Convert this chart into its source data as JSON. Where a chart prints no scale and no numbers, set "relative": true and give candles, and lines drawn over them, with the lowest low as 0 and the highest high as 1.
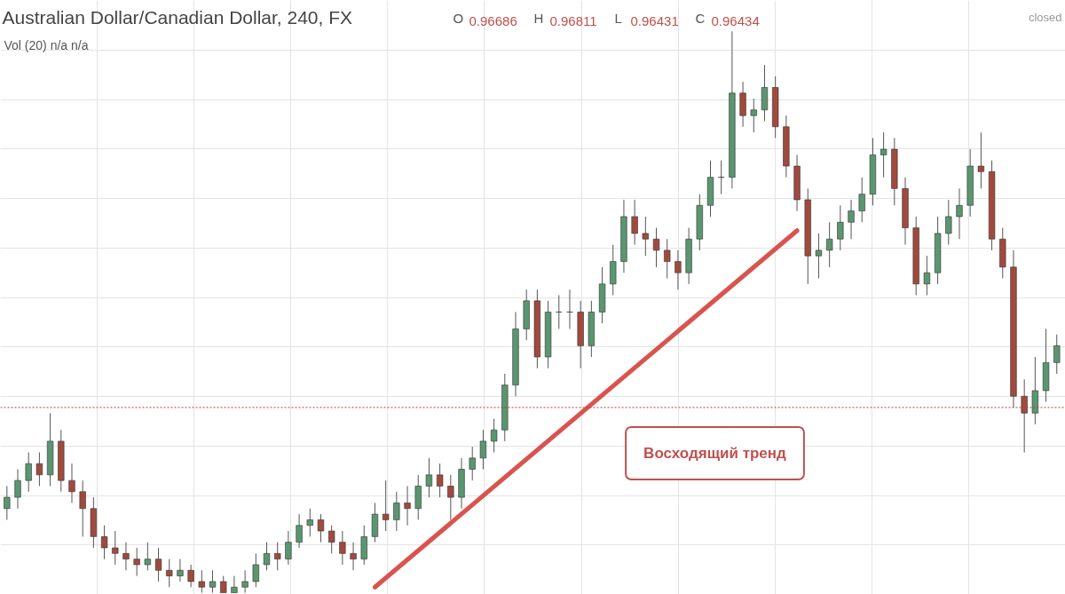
{
  "chart_data": {
    "type": "candlestick",
    "title": "Australian Dollar/Canadian Dollar, 240, FX",
    "relative": true,
    "tick_labels": false,
    "grid": true,
    "annotations": [
      "O 0.96686 H 0.96811 L 0.96431 C 0.96434",
      "Vol (20) n/a n/a",
      "closed",
      "Восходящий тренд"
    ],
    "categories": [
      null,
      null,
      null,
      null,
      null,
      null,
      null,
      null,
      null,
      null,
      null,
      null,
      null,
      null,
      null,
      null,
      null,
      null,
      null,
      null,
      null,
      null,
      null,
      null,
      null,
      null,
      null,
      null,
      null,
      null,
      null,
      null,
      null,
      null,
      null,
      null,
      null,
      null,
      null,
      null,
      null,
      null,
      null,
      null,
      null,
      null,
      null,
      null,
      null,
      null,
      null,
      null,
      null,
      null,
      null,
      null,
      null,
      null,
      null,
      null,
      null,
      null,
      null,
      null,
      null,
      null,
      null,
      null,
      null,
      null,
      null,
      null,
      null,
      null,
      null,
      null,
      null,
      null,
      null,
      null,
      null,
      null,
      null,
      null,
      null,
      null,
      null,
      null,
      null,
      null,
      null,
      null,
      null,
      null,
      null,
      null,
      null,
      null
    ],
    "ohlc": [
      [
        0.15,
        0.19,
        0.13,
        0.17
      ],
      [
        0.17,
        0.22,
        0.15,
        0.2
      ],
      [
        0.2,
        0.25,
        0.18,
        0.23
      ],
      [
        0.23,
        0.25,
        0.19,
        0.21
      ],
      [
        0.21,
        0.32,
        0.19,
        0.27
      ],
      [
        0.27,
        0.29,
        0.18,
        0.2
      ],
      [
        0.2,
        0.23,
        0.16,
        0.18
      ],
      [
        0.18,
        0.2,
        0.1,
        0.15
      ],
      [
        0.15,
        0.17,
        0.08,
        0.1
      ],
      [
        0.1,
        0.12,
        0.06,
        0.08
      ],
      [
        0.08,
        0.11,
        0.05,
        0.07
      ],
      [
        0.07,
        0.09,
        0.04,
        0.06
      ],
      [
        0.06,
        0.08,
        0.03,
        0.05
      ],
      [
        0.05,
        0.09,
        0.04,
        0.06
      ],
      [
        0.06,
        0.08,
        0.02,
        0.04
      ],
      [
        0.04,
        0.06,
        0.01,
        0.03
      ],
      [
        0.03,
        0.06,
        0.02,
        0.04
      ],
      [
        0.04,
        0.05,
        0.01,
        0.02
      ],
      [
        0.02,
        0.04,
        0.0,
        0.01
      ],
      [
        0.01,
        0.04,
        0.0,
        0.02
      ],
      [
        0.02,
        0.03,
        0.0,
        0.0
      ],
      [
        0.0,
        0.03,
        0.0,
        0.01
      ],
      [
        0.01,
        0.04,
        0.0,
        0.02
      ],
      [
        0.02,
        0.07,
        0.01,
        0.05
      ],
      [
        0.05,
        0.09,
        0.04,
        0.07
      ],
      [
        0.07,
        0.09,
        0.04,
        0.06
      ],
      [
        0.06,
        0.11,
        0.05,
        0.09
      ],
      [
        0.09,
        0.14,
        0.08,
        0.12
      ],
      [
        0.12,
        0.15,
        0.1,
        0.13
      ],
      [
        0.13,
        0.14,
        0.09,
        0.11
      ],
      [
        0.11,
        0.12,
        0.07,
        0.09
      ],
      [
        0.09,
        0.11,
        0.05,
        0.07
      ],
      [
        0.07,
        0.09,
        0.04,
        0.06
      ],
      [
        0.06,
        0.12,
        0.05,
        0.1
      ],
      [
        0.1,
        0.16,
        0.09,
        0.14
      ],
      [
        0.14,
        0.2,
        0.11,
        0.13
      ],
      [
        0.13,
        0.18,
        0.11,
        0.16
      ],
      [
        0.16,
        0.19,
        0.12,
        0.15
      ],
      [
        0.15,
        0.21,
        0.13,
        0.19
      ],
      [
        0.19,
        0.24,
        0.17,
        0.21
      ],
      [
        0.21,
        0.23,
        0.17,
        0.19
      ],
      [
        0.19,
        0.21,
        0.13,
        0.17
      ],
      [
        0.17,
        0.24,
        0.15,
        0.22
      ],
      [
        0.22,
        0.26,
        0.2,
        0.24
      ],
      [
        0.24,
        0.29,
        0.22,
        0.27
      ],
      [
        0.27,
        0.31,
        0.25,
        0.29
      ],
      [
        0.29,
        0.39,
        0.27,
        0.37
      ],
      [
        0.37,
        0.5,
        0.35,
        0.47
      ],
      [
        0.47,
        0.54,
        0.45,
        0.52
      ],
      [
        0.52,
        0.54,
        0.4,
        0.42
      ],
      [
        0.42,
        0.52,
        0.4,
        0.5
      ],
      [
        0.5,
        0.53,
        0.47,
        0.5
      ],
      [
        0.5,
        0.54,
        0.47,
        0.5
      ],
      [
        0.5,
        0.52,
        0.4,
        0.44
      ],
      [
        0.44,
        0.52,
        0.42,
        0.5
      ],
      [
        0.5,
        0.58,
        0.48,
        0.55
      ],
      [
        0.55,
        0.62,
        0.53,
        0.59
      ],
      [
        0.59,
        0.7,
        0.57,
        0.67
      ],
      [
        0.67,
        0.7,
        0.62,
        0.64
      ],
      [
        0.64,
        0.67,
        0.6,
        0.63
      ],
      [
        0.63,
        0.65,
        0.58,
        0.61
      ],
      [
        0.61,
        0.63,
        0.56,
        0.59
      ],
      [
        0.59,
        0.61,
        0.54,
        0.57
      ],
      [
        0.57,
        0.65,
        0.55,
        0.63
      ],
      [
        0.63,
        0.71,
        0.61,
        0.69
      ],
      [
        0.69,
        0.77,
        0.67,
        0.74
      ],
      [
        0.74,
        0.77,
        0.71,
        0.74
      ],
      [
        0.74,
        1.0,
        0.72,
        0.89
      ],
      [
        0.89,
        0.91,
        0.83,
        0.85
      ],
      [
        0.85,
        0.88,
        0.82,
        0.86
      ],
      [
        0.86,
        0.94,
        0.84,
        0.9
      ],
      [
        0.9,
        0.92,
        0.81,
        0.83
      ],
      [
        0.83,
        0.85,
        0.74,
        0.76
      ],
      [
        0.76,
        0.78,
        0.68,
        0.7
      ],
      [
        0.7,
        0.72,
        0.55,
        0.6
      ],
      [
        0.6,
        0.64,
        0.56,
        0.61
      ],
      [
        0.61,
        0.66,
        0.58,
        0.63
      ],
      [
        0.63,
        0.69,
        0.61,
        0.66
      ],
      [
        0.66,
        0.7,
        0.63,
        0.68
      ],
      [
        0.68,
        0.74,
        0.66,
        0.71
      ],
      [
        0.71,
        0.81,
        0.69,
        0.78
      ],
      [
        0.78,
        0.82,
        0.74,
        0.79
      ],
      [
        0.79,
        0.81,
        0.69,
        0.72
      ],
      [
        0.72,
        0.74,
        0.62,
        0.65
      ],
      [
        0.65,
        0.67,
        0.53,
        0.55
      ],
      [
        0.55,
        0.6,
        0.53,
        0.57
      ],
      [
        0.57,
        0.67,
        0.55,
        0.64
      ],
      [
        0.64,
        0.7,
        0.62,
        0.67
      ],
      [
        0.67,
        0.72,
        0.63,
        0.69
      ],
      [
        0.69,
        0.79,
        0.67,
        0.76
      ],
      [
        0.76,
        0.82,
        0.72,
        0.75
      ],
      [
        0.75,
        0.77,
        0.61,
        0.63
      ],
      [
        0.63,
        0.65,
        0.56,
        0.58
      ],
      [
        0.58,
        0.61,
        0.33,
        0.35
      ],
      [
        0.35,
        0.38,
        0.25,
        0.32
      ],
      [
        0.32,
        0.42,
        0.3,
        0.36
      ],
      [
        0.36,
        0.47,
        0.34,
        0.41
      ],
      [
        0.41,
        0.46,
        0.39,
        0.44
      ]
    ],
    "series": [
      {
        "type": "line",
        "values": [
          null,
          null,
          null,
          null,
          null,
          null,
          null,
          null,
          null,
          null,
          null,
          null,
          null,
          null,
          null,
          null,
          null,
          null,
          null,
          null,
          null,
          null,
          null,
          null,
          null,
          null,
          null,
          null,
          null,
          null,
          null,
          null,
          null,
          null,
          0.01,
          null,
          null,
          null,
          null,
          null,
          null,
          null,
          null,
          null,
          null,
          null,
          null,
          null,
          null,
          null,
          null,
          null,
          null,
          null,
          null,
          null,
          null,
          null,
          null,
          null,
          null,
          null,
          null,
          null,
          null,
          null,
          null,
          null,
          null,
          null,
          null,
          null,
          null,
          0.645,
          null,
          null,
          null,
          null,
          null,
          null,
          null,
          null,
          null,
          null,
          null,
          null,
          null,
          null,
          null,
          null,
          null,
          null,
          null,
          null,
          null,
          null,
          null,
          null
        ],
        "color": "#d9534f"
      }
    ],
    "ref_lines": [
      {
        "axis": "y",
        "value": 0.33,
        "color": "#c0392b",
        "line_style": "dotted"
      }
    ]
  }
}
